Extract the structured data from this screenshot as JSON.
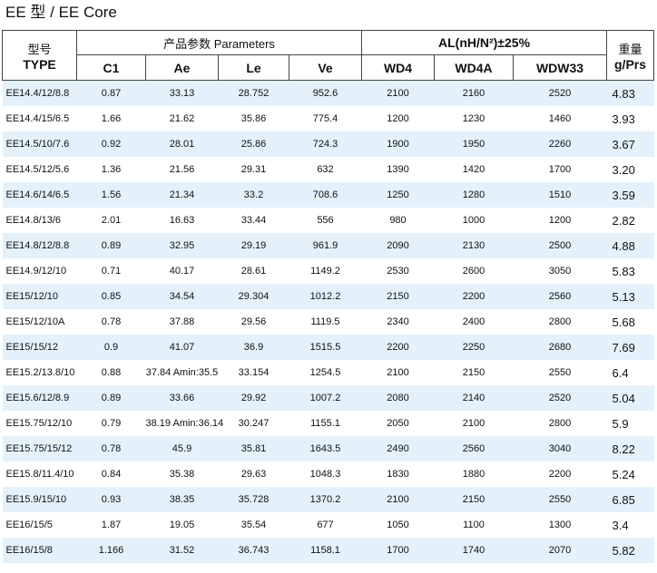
{
  "title": "EE 型 / EE Core",
  "header": {
    "type_zh": "型号",
    "type_en": "TYPE",
    "params": "产品参数  Parameters",
    "al": "AL(nH/N²)±25%",
    "weight_zh": "重量",
    "weight_en": "g/Prs",
    "columns": [
      "C1",
      "Ae",
      "Le",
      "Ve",
      "WD4",
      "WD4A",
      "WDW33"
    ]
  },
  "rows": [
    [
      "EE14.4/12/8.8",
      "0.87",
      "33.13",
      "28.752",
      "952.6",
      "2100",
      "2160",
      "2520",
      "4.83"
    ],
    [
      "EE14.4/15/6.5",
      "1.66",
      "21.62",
      "35.86",
      "775.4",
      "1200",
      "1230",
      "1460",
      "3.93"
    ],
    [
      "EE14.5/10/7.6",
      "0.92",
      "28.01",
      "25.86",
      "724.3",
      "1900",
      "1950",
      "2260",
      "3.67"
    ],
    [
      "EE14.5/12/5.6",
      "1.36",
      "21.56",
      "29.31",
      "632",
      "1390",
      "1420",
      "1700",
      "3.20"
    ],
    [
      "EE14.6/14/6.5",
      "1.56",
      "21.34",
      "33.2",
      "708.6",
      "1250",
      "1280",
      "1510",
      "3.59"
    ],
    [
      "EE14.8/13/6",
      "2.01",
      "16.63",
      "33.44",
      "556",
      "980",
      "1000",
      "1200",
      "2.82"
    ],
    [
      "EE14.8/12/8.8",
      "0.89",
      "32.95",
      "29.19",
      "961.9",
      "2090",
      "2130",
      "2500",
      "4.88"
    ],
    [
      "EE14.9/12/10",
      "0.71",
      "40.17",
      "28.61",
      "1149.2",
      "2530",
      "2600",
      "3050",
      "5.83"
    ],
    [
      "EE15/12/10",
      "0.85",
      "34.54",
      "29.304",
      "1012.2",
      "2150",
      "2200",
      "2560",
      "5.13"
    ],
    [
      "EE15/12/10A",
      "0.78",
      "37.88",
      "29.56",
      "1119.5",
      "2340",
      "2400",
      "2800",
      "5.68"
    ],
    [
      "EE15/15/12",
      "0.9",
      "41.07",
      "36.9",
      "1515.5",
      "2200",
      "2250",
      "2680",
      "7.69"
    ],
    [
      "EE15.2/13.8/10",
      "0.88",
      "37.84 Amin:35.5",
      "33.154",
      "1254.5",
      "2100",
      "2150",
      "2550",
      "6.4"
    ],
    [
      "EE15.6/12/8.9",
      "0.89",
      "33.66",
      "29.92",
      "1007.2",
      "2080",
      "2140",
      "2520",
      "5.04"
    ],
    [
      "EE15.75/12/10",
      "0.79",
      "38.19 Amin:36.14",
      "30.247",
      "1155.1",
      "2050",
      "2100",
      "2800",
      "5.9"
    ],
    [
      "EE15.75/15/12",
      "0.78",
      "45.9",
      "35.81",
      "1643.5",
      "2490",
      "2560",
      "3040",
      "8.22"
    ],
    [
      "EE15.8/11.4/10",
      "0.84",
      "35.38",
      "29.63",
      "1048.3",
      "1830",
      "1880",
      "2200",
      "5.24"
    ],
    [
      "EE15.9/15/10",
      "0.93",
      "38.35",
      "35.728",
      "1370.2",
      "2100",
      "2150",
      "2550",
      "6.85"
    ],
    [
      "EE16/15/5",
      "1.87",
      "19.05",
      "35.54",
      "677",
      "1050",
      "1100",
      "1300",
      "3.4"
    ],
    [
      "EE16/15/8",
      "1.166",
      "31.52",
      "36.743",
      "1158.1",
      "1700",
      "1740",
      "2070",
      "5.82"
    ]
  ]
}
